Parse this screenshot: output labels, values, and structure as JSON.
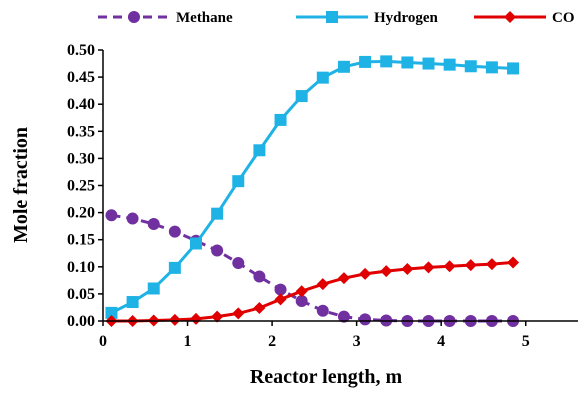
{
  "chart_data": {
    "type": "line",
    "title": "",
    "xlabel": "Reactor length, m",
    "ylabel": "Mole fraction",
    "xlim": [
      0,
      5.5
    ],
    "ylim": [
      0,
      0.5
    ],
    "x_ticks": [
      "0",
      "1",
      "2",
      "3",
      "4",
      "5"
    ],
    "y_ticks": [
      "0.00",
      "0.05",
      "0.10",
      "0.15",
      "0.20",
      "0.25",
      "0.30",
      "0.35",
      "0.40",
      "0.45",
      "0.50"
    ],
    "grid": false,
    "legend_position": "top",
    "series": [
      {
        "name": "Methane",
        "color": "#7030A0",
        "line_style": "dashed",
        "marker": "circle",
        "x": [
          0.1,
          0.35,
          0.6,
          0.85,
          1.1,
          1.35,
          1.6,
          1.85,
          2.1,
          2.35,
          2.6,
          2.85,
          3.1,
          3.35,
          3.6,
          3.85,
          4.1,
          4.35,
          4.6,
          4.85
        ],
        "y": [
          0.195,
          0.189,
          0.179,
          0.165,
          0.148,
          0.13,
          0.107,
          0.082,
          0.058,
          0.037,
          0.019,
          0.008,
          0.003,
          0.001,
          0.0,
          0.0,
          0.0,
          0.0,
          0.0,
          0.0
        ]
      },
      {
        "name": "Hydrogen",
        "color": "#1FB3E5",
        "line_style": "solid",
        "marker": "square",
        "x": [
          0.1,
          0.35,
          0.6,
          0.85,
          1.1,
          1.35,
          1.6,
          1.85,
          2.1,
          2.35,
          2.6,
          2.85,
          3.1,
          3.35,
          3.6,
          3.85,
          4.1,
          4.35,
          4.6,
          4.85
        ],
        "y": [
          0.015,
          0.035,
          0.06,
          0.098,
          0.143,
          0.198,
          0.258,
          0.315,
          0.371,
          0.415,
          0.449,
          0.469,
          0.478,
          0.479,
          0.477,
          0.475,
          0.473,
          0.47,
          0.468,
          0.466
        ]
      },
      {
        "name": "CO",
        "color": "#E00000",
        "line_style": "solid",
        "marker": "diamond",
        "x": [
          0.1,
          0.35,
          0.6,
          0.85,
          1.1,
          1.35,
          1.6,
          1.85,
          2.1,
          2.35,
          2.6,
          2.85,
          3.1,
          3.35,
          3.6,
          3.85,
          4.1,
          4.35,
          4.6,
          4.85
        ],
        "y": [
          0.0,
          0.0,
          0.001,
          0.002,
          0.004,
          0.008,
          0.014,
          0.024,
          0.04,
          0.055,
          0.068,
          0.079,
          0.087,
          0.092,
          0.096,
          0.099,
          0.101,
          0.103,
          0.105,
          0.108
        ]
      }
    ]
  }
}
